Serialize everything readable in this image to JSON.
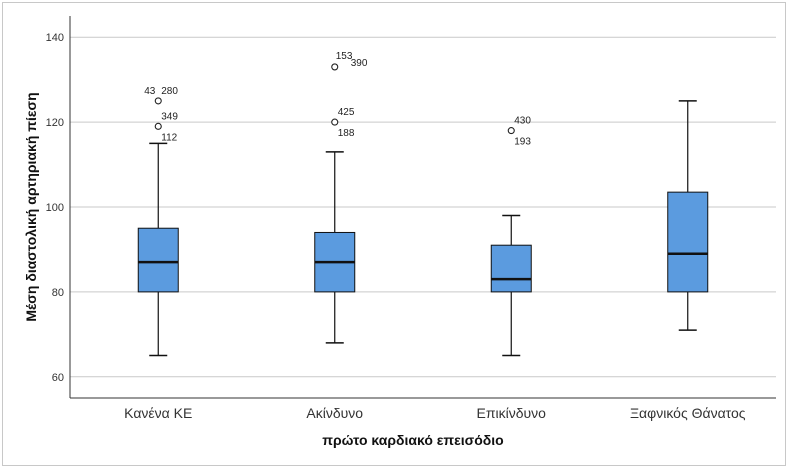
{
  "chart_data": {
    "type": "boxplot",
    "xlabel": "πρώτο καρδιακό επεισόδιο",
    "ylabel": "Μέση διαστολική αρτηριακή πίεση",
    "ylim": [
      55,
      145
    ],
    "yticks": [
      "60",
      "80",
      "100",
      "120",
      "140"
    ],
    "grid": true,
    "box_color": "#5b9bdf",
    "categories": [
      "Κανένα ΚΕ",
      "Ακίνδυνο",
      "Επικίνδυνο",
      "Ξαφνικός Θάνατος"
    ],
    "boxes": [
      {
        "min": 65,
        "q1": 80,
        "median": 87,
        "q3": 95,
        "max": 115,
        "outliers": [
          {
            "value": 125,
            "labels": [
              "43",
              "280"
            ]
          },
          {
            "value": 119,
            "labels": [
              "349",
              "112"
            ]
          }
        ]
      },
      {
        "min": 68,
        "q1": 80,
        "median": 87,
        "q3": 94,
        "max": 113,
        "outliers": [
          {
            "value": 133,
            "labels": [
              "153",
              "390"
            ]
          },
          {
            "value": 120,
            "labels": [
              "425",
              "188"
            ]
          }
        ]
      },
      {
        "min": 65,
        "q1": 80,
        "median": 83,
        "q3": 91,
        "max": 98,
        "outliers": [
          {
            "value": 118,
            "labels": [
              "430",
              "193"
            ]
          }
        ]
      },
      {
        "min": 71,
        "q1": 80,
        "median": 89,
        "q3": 103.5,
        "max": 125,
        "outliers": []
      }
    ]
  }
}
